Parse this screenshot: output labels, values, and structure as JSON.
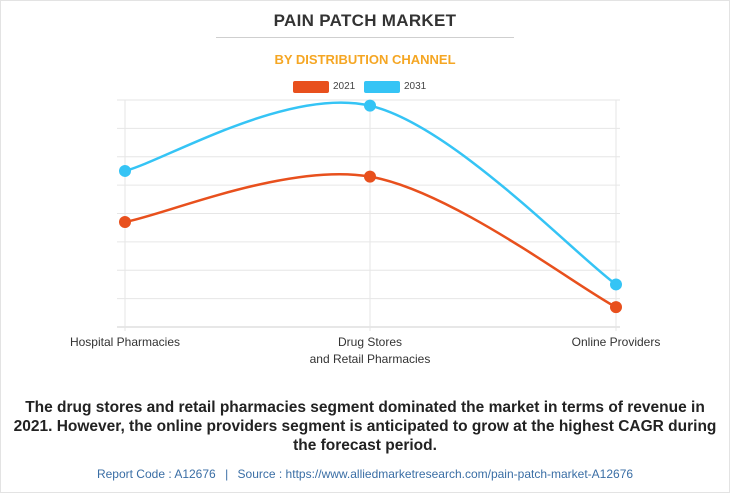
{
  "header": {
    "title": "PAIN PATCH MARKET",
    "subtitle": "BY DISTRIBUTION CHANNEL"
  },
  "chart_data": {
    "type": "line",
    "title": "PAIN PATCH MARKET",
    "subtitle": "BY DISTRIBUTION CHANNEL",
    "categories": [
      "Hospital Pharmacies",
      "Drug Stores\nand Retail Pharmacies",
      "Online Providers"
    ],
    "series": [
      {
        "name": "2021",
        "color": "#e8501d",
        "values": [
          3.7,
          5.3,
          0.7
        ]
      },
      {
        "name": "2031",
        "color": "#35c4f5",
        "values": [
          5.5,
          7.8,
          1.5
        ]
      }
    ],
    "ylim": [
      0,
      8
    ],
    "xlabel": "",
    "ylabel": "",
    "grid": true,
    "legend": "top-center",
    "curve": "smooth"
  },
  "description": "The drug stores and retail pharmacies segment dominated the market in terms of revenue in 2021. However, the online providers segment is anticipated to grow at the highest CAGR during the forecast period.",
  "footer": {
    "report_code_label": "Report Code : A12676",
    "separator": "|",
    "source_label": "Source : https://www.alliedmarketresearch.com/pain-patch-market-A12676"
  }
}
